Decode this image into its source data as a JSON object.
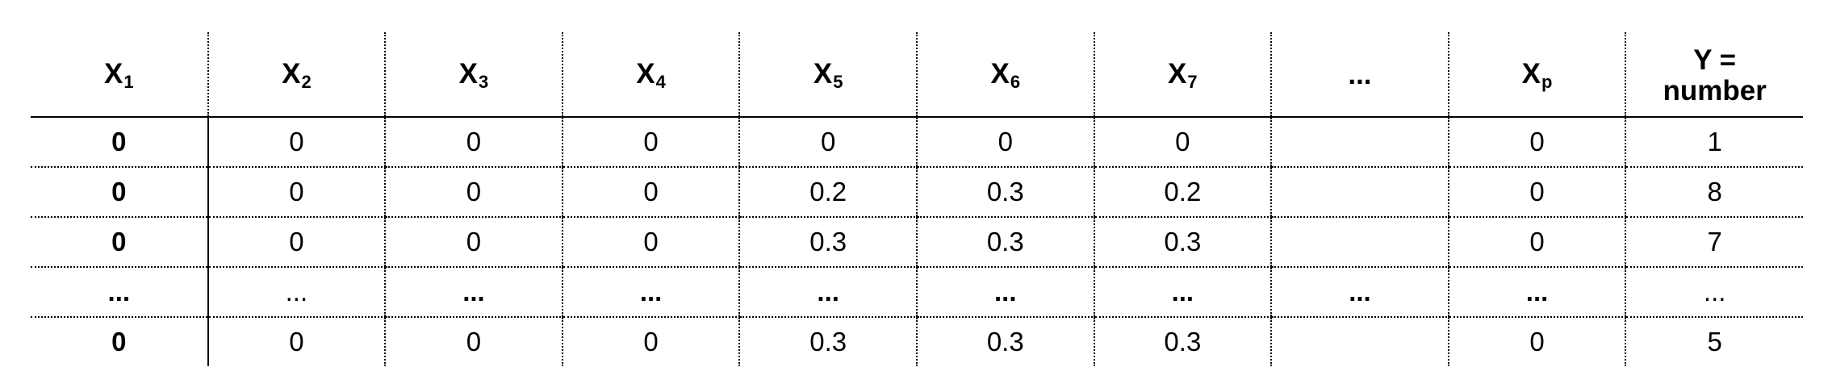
{
  "headers": [
    {
      "base": "X",
      "sub": "1"
    },
    {
      "base": "X",
      "sub": "2"
    },
    {
      "base": "X",
      "sub": "3"
    },
    {
      "base": "X",
      "sub": "4"
    },
    {
      "base": "X",
      "sub": "5"
    },
    {
      "base": "X",
      "sub": "6"
    },
    {
      "base": "X",
      "sub": "7"
    },
    {
      "base": "...",
      "sub": ""
    },
    {
      "base": "X",
      "sub": "p"
    },
    {
      "line1": "Y =",
      "line2": "number"
    }
  ],
  "rows": [
    [
      "0",
      "0",
      "0",
      "0",
      "0",
      "0",
      "0",
      "",
      "0",
      "1"
    ],
    [
      "0",
      "0",
      "0",
      "0",
      "0.2",
      "0.3",
      "0.2",
      "",
      "0",
      "8"
    ],
    [
      "0",
      "0",
      "0",
      "0",
      "0.3",
      "0.3",
      "0.3",
      "",
      "0",
      "7"
    ],
    [
      "...",
      "...",
      "...",
      "...",
      "...",
      "...",
      "...",
      "...",
      "...",
      "..."
    ],
    [
      "0",
      "0",
      "0",
      "0",
      "0.3",
      "0.3",
      "0.3",
      "",
      "0",
      "5"
    ]
  ]
}
